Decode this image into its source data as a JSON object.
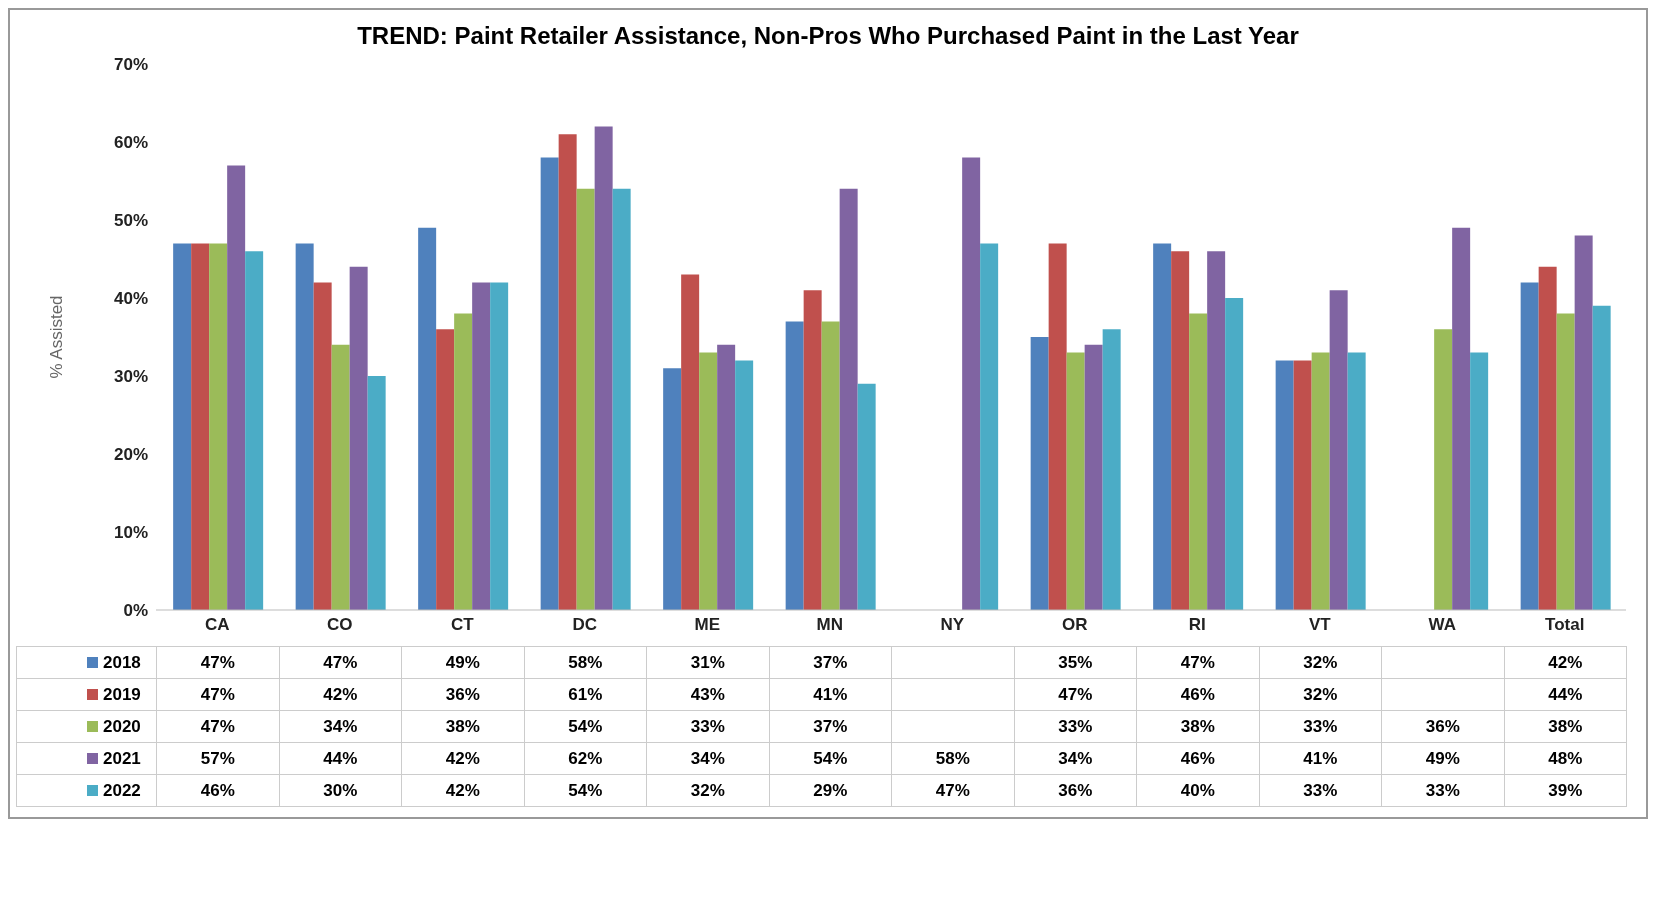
{
  "chart_data": {
    "type": "bar",
    "title": "TREND: Paint Retailer Assistance, Non-Pros Who Purchased Paint in the Last Year",
    "ylabel": "% Assisted",
    "categories": [
      "CA",
      "CO",
      "CT",
      "DC",
      "ME",
      "MN",
      "NY",
      "OR",
      "RI",
      "VT",
      "WA",
      "Total"
    ],
    "series": [
      {
        "name": "2018",
        "color": "#4f81bd",
        "values": [
          47,
          47,
          49,
          58,
          31,
          37,
          null,
          35,
          47,
          32,
          null,
          42
        ],
        "value_labels": [
          "47%",
          "47%",
          "49%",
          "58%",
          "31%",
          "37%",
          null,
          "35%",
          "47%",
          "32%",
          null,
          "42%"
        ]
      },
      {
        "name": "2019",
        "color": "#c0504d",
        "values": [
          47,
          42,
          36,
          61,
          43,
          41,
          null,
          47,
          46,
          32,
          null,
          44
        ],
        "value_labels": [
          "47%",
          "42%",
          "36%",
          "61%",
          "43%",
          "41%",
          null,
          "47%",
          "46%",
          "32%",
          null,
          "44%"
        ]
      },
      {
        "name": "2020",
        "color": "#9bbb59",
        "values": [
          47,
          34,
          38,
          54,
          33,
          37,
          null,
          33,
          38,
          33,
          36,
          38
        ],
        "value_labels": [
          "47%",
          "34%",
          "38%",
          "54%",
          "33%",
          "37%",
          null,
          "33%",
          "38%",
          "33%",
          "36%",
          "38%"
        ]
      },
      {
        "name": "2021",
        "color": "#8064a2",
        "values": [
          57,
          44,
          42,
          62,
          34,
          54,
          58,
          34,
          46,
          41,
          49,
          48
        ],
        "value_labels": [
          "57%",
          "44%",
          "42%",
          "62%",
          "34%",
          "54%",
          "58%",
          "34%",
          "46%",
          "41%",
          "49%",
          "48%"
        ]
      },
      {
        "name": "2022",
        "color": "#4bacc6",
        "values": [
          46,
          30,
          42,
          54,
          32,
          29,
          47,
          36,
          40,
          33,
          33,
          39
        ],
        "value_labels": [
          "46%",
          "30%",
          "42%",
          "54%",
          "32%",
          "29%",
          "47%",
          "36%",
          "40%",
          "33%",
          "33%",
          "39%"
        ]
      }
    ],
    "ylim": [
      0,
      70
    ],
    "yticks": [
      {
        "value": 0,
        "label": "0%"
      },
      {
        "value": 10,
        "label": "10%"
      },
      {
        "value": 20,
        "label": "20%"
      },
      {
        "value": 30,
        "label": "30%"
      },
      {
        "value": 40,
        "label": "40%"
      },
      {
        "value": 50,
        "label": "50%"
      },
      {
        "value": 60,
        "label": "60%"
      },
      {
        "value": 70,
        "label": "70%"
      }
    ],
    "legend": "bottom left"
  }
}
